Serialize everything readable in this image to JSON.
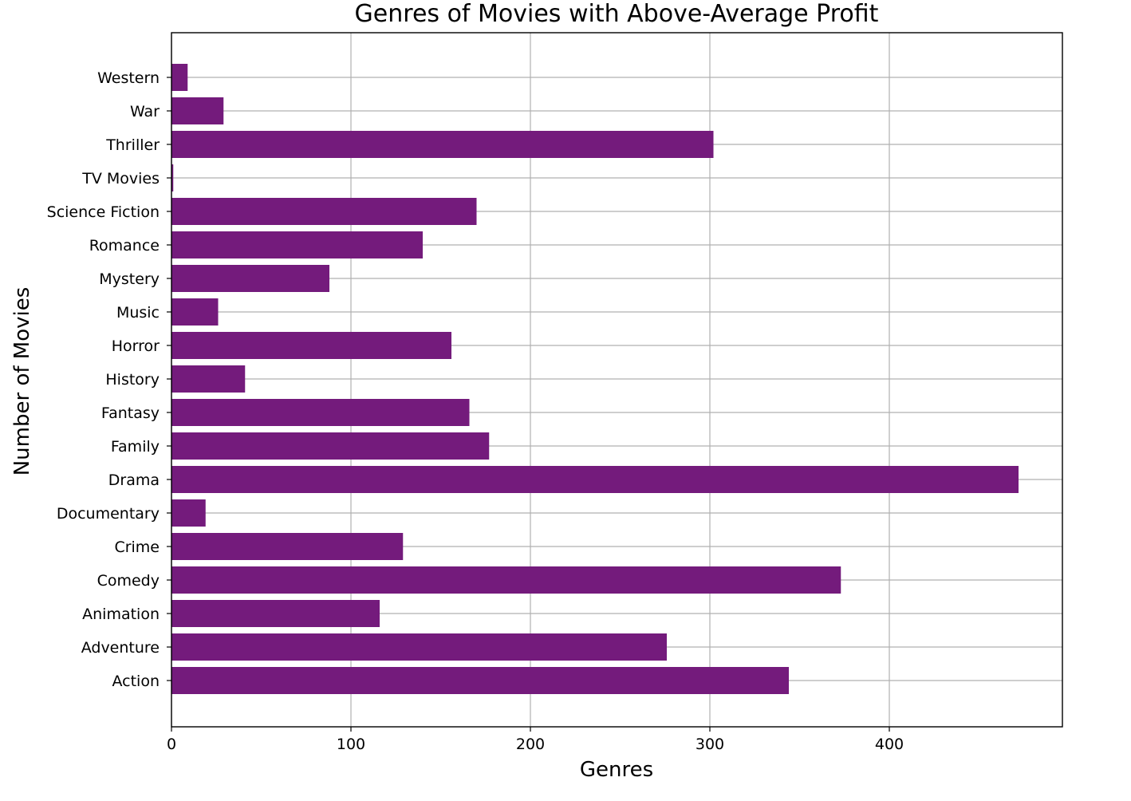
{
  "chart_data": {
    "type": "bar",
    "orientation": "horizontal",
    "title": "Genres of Movies with Above-Average Profit",
    "xlabel": "Genres",
    "ylabel": "Number of Movies",
    "categories": [
      "Action",
      "Adventure",
      "Animation",
      "Comedy",
      "Crime",
      "Documentary",
      "Drama",
      "Family",
      "Fantasy",
      "History",
      "Horror",
      "Music",
      "Mystery",
      "Romance",
      "Science Fiction",
      "TV Movies",
      "Thriller",
      "War",
      "Western"
    ],
    "values": [
      344,
      276,
      116,
      373,
      129,
      19,
      472,
      177,
      166,
      41,
      156,
      26,
      88,
      140,
      170,
      1,
      302,
      29,
      9
    ],
    "xlim": [
      0,
      496
    ],
    "xticks": [
      0,
      100,
      200,
      300,
      400
    ],
    "grid": true,
    "bar_color": "#741b7c"
  }
}
